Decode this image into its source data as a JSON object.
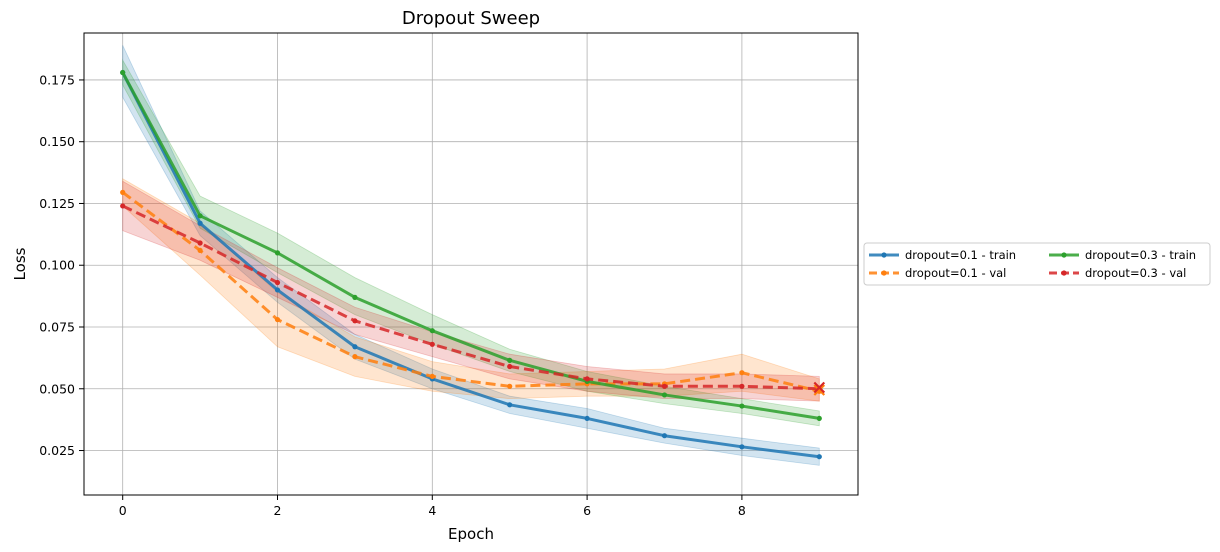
{
  "chart_data": {
    "type": "line",
    "title": "Dropout Sweep",
    "xlabel": "Epoch",
    "ylabel": "Loss",
    "xlim": [
      -0.5,
      9.5
    ],
    "ylim": [
      0.007,
      0.194
    ],
    "xticks": [
      0,
      2,
      4,
      6,
      8
    ],
    "yticks": [
      0.025,
      0.05,
      0.075,
      0.1,
      0.125,
      0.15,
      0.175
    ],
    "grid": true,
    "legend_placement": "center-right outside",
    "x": [
      0,
      1,
      2,
      3,
      4,
      5,
      6,
      7,
      8,
      9
    ],
    "series": [
      {
        "name": "dropout=0.1 - train",
        "color": "#1f77b4",
        "style": "solid",
        "values": [
          0.178,
          0.117,
          0.09,
          0.067,
          0.054,
          0.0435,
          0.038,
          0.031,
          0.0265,
          0.0225
        ],
        "lower": [
          0.168,
          0.112,
          0.085,
          0.062,
          0.05,
          0.04,
          0.034,
          0.028,
          0.023,
          0.019
        ],
        "upper": [
          0.189,
          0.122,
          0.095,
          0.072,
          0.058,
          0.047,
          0.042,
          0.034,
          0.03,
          0.026
        ]
      },
      {
        "name": "dropout=0.1 - val",
        "color": "#ff7f0e",
        "style": "dashed",
        "values": [
          0.1295,
          0.106,
          0.078,
          0.063,
          0.055,
          0.051,
          0.052,
          0.052,
          0.0565,
          0.049
        ],
        "lower": [
          0.124,
          0.096,
          0.067,
          0.055,
          0.049,
          0.046,
          0.047,
          0.047,
          0.049,
          0.045
        ],
        "upper": [
          0.135,
          0.117,
          0.089,
          0.071,
          0.061,
          0.056,
          0.057,
          0.058,
          0.064,
          0.054
        ]
      },
      {
        "name": "dropout=0.3 - train",
        "color": "#2ca02c",
        "style": "solid",
        "values": [
          0.178,
          0.12,
          0.105,
          0.087,
          0.0735,
          0.0615,
          0.053,
          0.0475,
          0.043,
          0.038
        ],
        "lower": [
          0.173,
          0.115,
          0.097,
          0.08,
          0.068,
          0.057,
          0.049,
          0.044,
          0.04,
          0.035
        ],
        "upper": [
          0.183,
          0.128,
          0.113,
          0.095,
          0.08,
          0.066,
          0.057,
          0.051,
          0.046,
          0.041
        ]
      },
      {
        "name": "dropout=0.3 - val",
        "color": "#d62728",
        "style": "dashed",
        "values": [
          0.124,
          0.109,
          0.093,
          0.0775,
          0.068,
          0.059,
          0.054,
          0.051,
          0.051,
          0.05
        ],
        "lower": [
          0.114,
          0.102,
          0.087,
          0.072,
          0.063,
          0.054,
          0.049,
          0.046,
          0.046,
          0.045
        ],
        "upper": [
          0.134,
          0.116,
          0.099,
          0.083,
          0.073,
          0.064,
          0.059,
          0.056,
          0.056,
          0.055
        ]
      }
    ],
    "annotations": [
      {
        "marker": "x",
        "x": 9,
        "y": 0.0495,
        "color": "#ff7f0e"
      },
      {
        "marker": "x",
        "x": 9,
        "y": 0.0505,
        "color": "#d62728"
      }
    ]
  }
}
